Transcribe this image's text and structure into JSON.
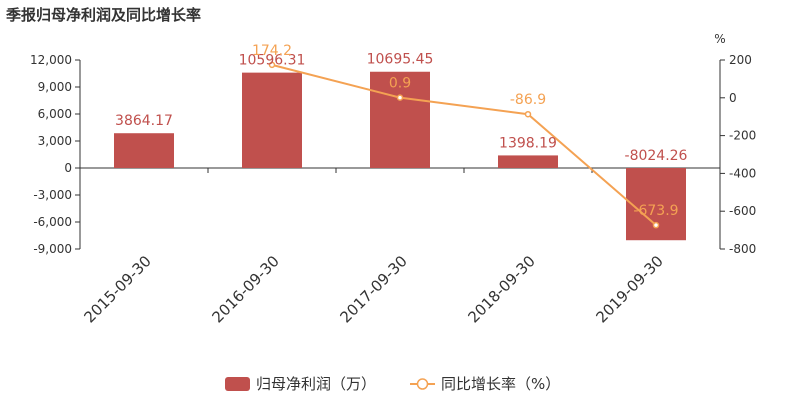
{
  "title": "季报归母净利润及同比增长率",
  "colors": {
    "bar": "#c0504d",
    "line": "#f4a253",
    "axis": "#333333"
  },
  "chart_data": {
    "type": "bar+line",
    "title": "季报归母净利润及同比增长率",
    "categories": [
      "2015-09-30",
      "2016-09-30",
      "2017-09-30",
      "2018-09-30",
      "2019-09-30"
    ],
    "series": [
      {
        "name": "归母净利润（万）",
        "type": "bar",
        "axis": "left",
        "values": [
          3864.17,
          10596.31,
          10695.45,
          1398.19,
          -8024.26
        ],
        "labels": [
          "3864.17",
          "10596.31",
          "10695.45",
          "1398.19",
          "-8024.26"
        ]
      },
      {
        "name": "同比增长率（%）",
        "type": "line",
        "axis": "right",
        "points": [
          {
            "x": "2016-09-30",
            "y": 174.2
          },
          {
            "x": "2017-09-30",
            "y": 0.9
          },
          {
            "x": "2018-09-30",
            "y": -86.9
          },
          {
            "x": "2019-09-30",
            "y": -673.9
          }
        ],
        "labels": [
          "174.2",
          "0.9",
          "-86.9",
          "-673.9"
        ]
      }
    ],
    "y_left": {
      "min": -9000,
      "max": 12000,
      "ticks": [
        "12,000",
        "9,000",
        "6,000",
        "3,000",
        "0",
        "-3,000",
        "-6,000",
        "-9,000"
      ],
      "tick_values": [
        12000,
        9000,
        6000,
        3000,
        0,
        -3000,
        -6000,
        -9000
      ]
    },
    "y_right": {
      "min": -800,
      "max": 200,
      "unit": "%",
      "ticks": [
        "200",
        "0",
        "-200",
        "-400",
        "-600",
        "-800"
      ],
      "tick_values": [
        200,
        0,
        -200,
        -400,
        -600,
        -800
      ]
    },
    "legend": {
      "position": "bottom-center",
      "items": [
        "归母净利润（万）",
        "同比增长率（%）"
      ]
    },
    "grid": false
  }
}
